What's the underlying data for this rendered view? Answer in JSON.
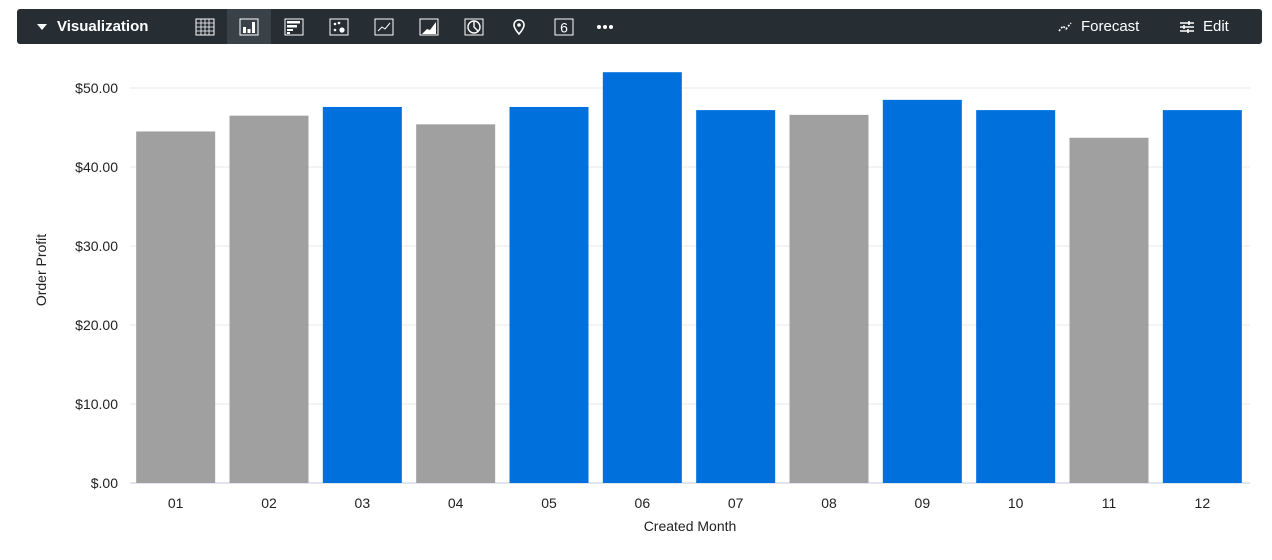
{
  "toolbar": {
    "title": "Visualization",
    "icons": [
      "table-icon",
      "column-chart-icon",
      "bar-chart-icon",
      "scatter-icon",
      "line-chart-icon",
      "area-chart-icon",
      "pie-chart-icon",
      "map-pin-icon",
      "single-value-icon",
      "more-icon"
    ],
    "active_icon": "column-chart-icon",
    "single_value_glyph": "6",
    "forecast_label": "Forecast",
    "edit_label": "Edit"
  },
  "chart_data": {
    "type": "bar",
    "xlabel": "Created Month",
    "ylabel": "Order Profit",
    "categories": [
      "01",
      "02",
      "03",
      "04",
      "05",
      "06",
      "07",
      "08",
      "09",
      "10",
      "11",
      "12"
    ],
    "values": [
      44.5,
      46.5,
      47.6,
      45.4,
      47.6,
      52.0,
      47.2,
      46.6,
      48.5,
      47.2,
      43.7,
      47.2
    ],
    "bar_colors": [
      "#a0a0a0",
      "#a0a0a0",
      "#0070dc",
      "#a0a0a0",
      "#0070dc",
      "#0070dc",
      "#0070dc",
      "#a0a0a0",
      "#0070dc",
      "#0070dc",
      "#a0a0a0",
      "#0070dc"
    ],
    "yticks": [
      0,
      10,
      20,
      30,
      40,
      50
    ],
    "ytick_labels": [
      "$.00",
      "$10.00",
      "$20.00",
      "$30.00",
      "$40.00",
      "$50.00"
    ],
    "ylim": [
      0,
      55
    ],
    "grid": true
  }
}
